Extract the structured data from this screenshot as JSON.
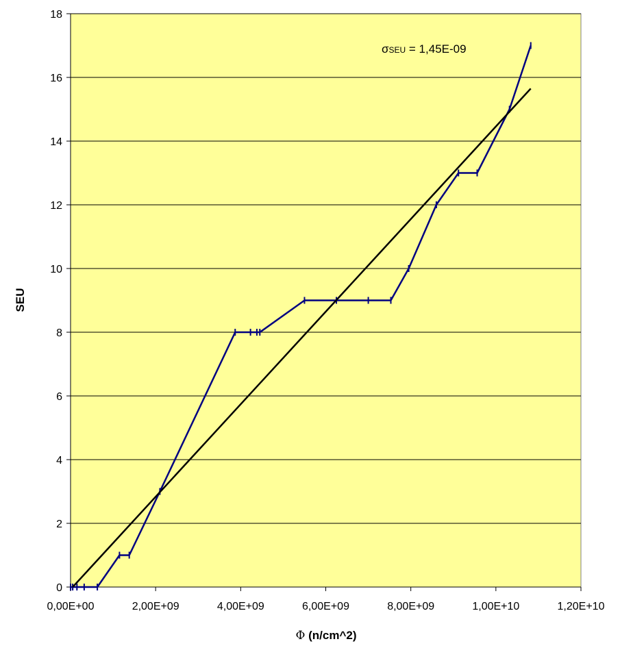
{
  "chart_data": {
    "type": "line",
    "title": "",
    "xlabel_symbol": "Φ",
    "xlabel_text": " (n/cm^2)",
    "ylabel": "SEU",
    "xlim": [
      0,
      12000000000
    ],
    "ylim": [
      0,
      18
    ],
    "x_ticks": [
      0,
      2000000000,
      4000000000,
      6000000000,
      8000000000,
      10000000000,
      12000000000
    ],
    "x_tick_labels": [
      "0,00E+00",
      "2,00E+09",
      "4,00E+09",
      "6,00E+09",
      "8,00E+09",
      "1,00E+10",
      "1,20E+10"
    ],
    "y_ticks": [
      0,
      2,
      4,
      6,
      8,
      10,
      12,
      14,
      16,
      18
    ],
    "y_tick_labels": [
      "0",
      "2",
      "4",
      "6",
      "8",
      "10",
      "12",
      "14",
      "16",
      "18"
    ],
    "grid": "horizontal",
    "legend": "none",
    "annotation": {
      "sigma": "σ",
      "sub": "SEU",
      "text": " = 1,45E-09"
    },
    "series": [
      {
        "color": "#000080",
        "style": "line-with-tick-markers",
        "x": [
          0,
          50000000,
          150000000,
          320000000,
          630000000,
          1150000000,
          1380000000,
          2100000000,
          3870000000,
          4230000000,
          4380000000,
          4450000000,
          5500000000,
          6250000000,
          7000000000,
          7530000000,
          7950000000,
          8600000000,
          9120000000,
          9560000000,
          10320000000,
          10820000000
        ],
        "y": [
          0,
          0,
          0,
          0,
          0,
          1,
          1,
          3,
          8,
          8,
          8,
          8,
          9,
          9,
          9,
          9,
          10,
          12,
          13,
          13,
          15,
          17
        ]
      },
      {
        "color": "#000000",
        "style": "line",
        "x": [
          50000000,
          10820000000
        ],
        "y": [
          0,
          15.65
        ]
      }
    ]
  }
}
